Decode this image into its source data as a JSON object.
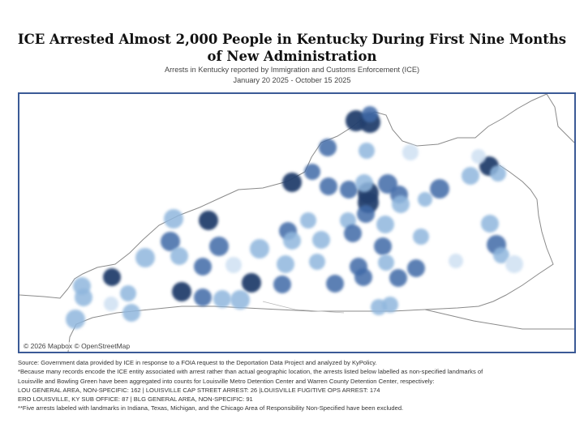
{
  "title": "ICE Arrested Almost 2,000 People in Kentucky During First Nine Months of New Administration",
  "subtitle": "Arrests in Kentucky reported by Immigration and Customs Enforcement (ICE)",
  "date_range": "January 20 2025 - October 15 2025",
  "map": {
    "credit": "© 2026 Mapbox © OpenStreetMap",
    "colors": {
      "dark": "#213f6e",
      "mid": "#3f6aa7",
      "light": "#8fb6dd",
      "lightest": "#cfe1f2",
      "border": "#3b5a96",
      "state_line": "#8a8a8a"
    },
    "legend": null
  },
  "notes": {
    "source": "Source: Government data provided by ICE in response to a FOIA request to the Deportation Data Project and analyzed by KyPolicy.",
    "footnote_1a": "*Because many records encode the ICE entity associated with arrest rather than actual geographic location, the arrests listed below labelled as non-specified landmarks of",
    "footnote_1b": "Louisville and Bowling Green have been aggregated into counts for Louisville Metro Detention Center and Warren County Detention Center, respectively:",
    "footnote_2": "LOU GENERAL AREA, NON-SPECIFIC: 162 | LOUISVILLE CAP STREET ARREST: 26 |LOUISVILLE FUGITIVE OPS ARREST: 174",
    "footnote_3": "ERO LOUISVILLE, KY SUB OFFICE: 87 | BLG GENERAL AREA, NON-SPECIFIC: 91",
    "footnote_4": "**Five arrests labeled with landmarks in Indiana, Texas, Michigan, and the Chicago Area of Responsibility Non-Specified have been excluded."
  }
}
